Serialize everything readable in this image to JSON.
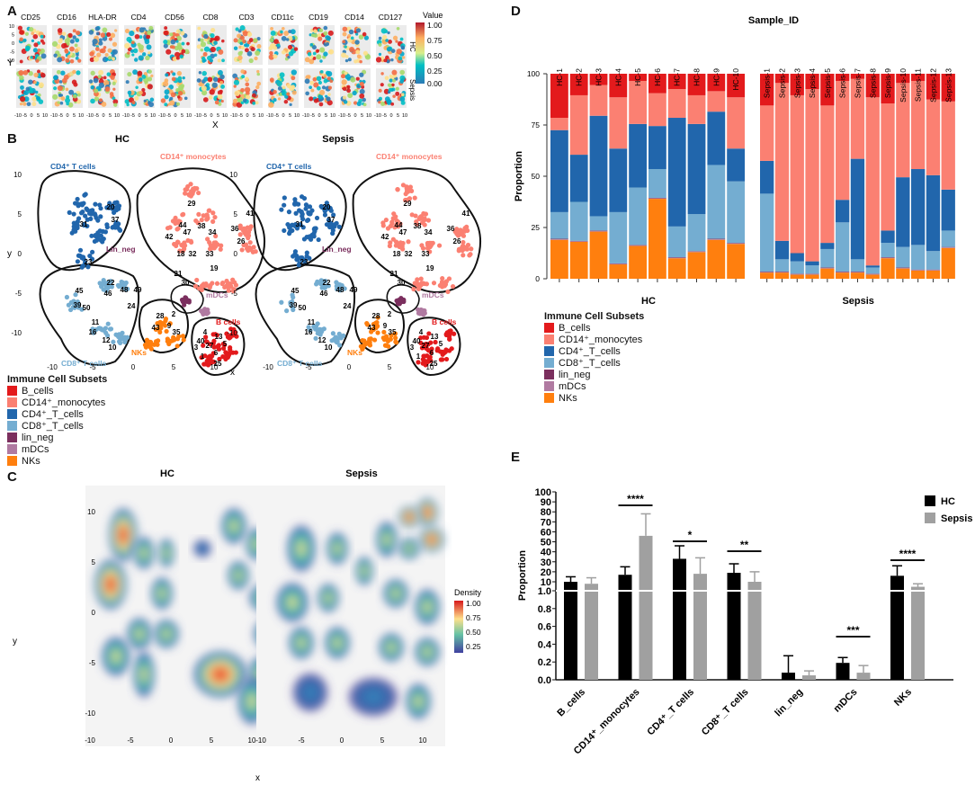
{
  "panel_labels": {
    "a": "A",
    "b": "B",
    "c": "C",
    "d": "D",
    "e": "E"
  },
  "panel_a": {
    "markers": [
      "CD25",
      "CD16",
      "HLA-DR",
      "CD4",
      "CD56",
      "CD8",
      "CD3",
      "CD11c",
      "CD19",
      "CD14",
      "CD127"
    ],
    "rows": [
      "HC",
      "Sepsis"
    ],
    "ylabel": "Y",
    "xlabel": "X",
    "xticks": [
      "-10",
      "-5",
      "0",
      "5",
      "10"
    ],
    "yticks": [
      "10",
      "5",
      "0",
      "-5",
      "-10"
    ],
    "colorbar_title": "Value",
    "colorbar_ticks": [
      "1.00",
      "0.75",
      "0.50",
      "0.25",
      "0.00"
    ]
  },
  "panel_b": {
    "titles": [
      "HC",
      "Sepsis"
    ],
    "xlabel": "x",
    "ylabel": "y",
    "xticks": [
      "-10",
      "-5",
      "0",
      "5",
      "10"
    ],
    "yticks": [
      "10",
      "5",
      "0",
      "-5",
      "-10"
    ],
    "population_labels": {
      "cd4": "CD4⁺ T cells",
      "cd14": "CD14⁺ monocytes",
      "lin": "Lin_neg",
      "mdc": "mDCs",
      "nk": "NKs",
      "bcell": "B cells",
      "cd8": "CD8⁺ T cells"
    },
    "legend_title": "Immune Cell Subsets",
    "legend_items": [
      {
        "label": "B_cells",
        "color": "#e31a1c"
      },
      {
        "label": "CD14⁺_monocytes",
        "color": "#fb8072"
      },
      {
        "label": "CD4⁺_T_cells",
        "color": "#2166ac"
      },
      {
        "label": "CD8⁺_T_cells",
        "color": "#74add1"
      },
      {
        "label": "lin_neg",
        "color": "#7b2f5e"
      },
      {
        "label": "mDCs",
        "color": "#b07aa1"
      },
      {
        "label": "NKs",
        "color": "#ff7f0e"
      }
    ],
    "cluster_numbers": [
      "29",
      "44",
      "38",
      "47",
      "34",
      "42",
      "36",
      "41",
      "26",
      "31",
      "20",
      "37",
      "23",
      "18",
      "32",
      "33",
      "19",
      "21",
      "22",
      "30",
      "45",
      "48",
      "46",
      "49",
      "39",
      "50",
      "24",
      "28",
      "2",
      "11",
      "16",
      "12",
      "10",
      "13",
      "6",
      "5",
      "40",
      "27",
      "25",
      "1",
      "3",
      "4",
      "9",
      "35",
      "43"
    ]
  },
  "panel_c": {
    "titles": [
      "HC",
      "Sepsis"
    ],
    "xlabel": "x",
    "ylabel": "y",
    "xticks": [
      "-10",
      "-5",
      "0",
      "5",
      "10"
    ],
    "yticks": [
      "10",
      "5",
      "0",
      "-5",
      "-10"
    ],
    "colorbar_title": "Density",
    "colorbar_ticks": [
      "1.00",
      "0.75",
      "0.50",
      "0.25"
    ]
  },
  "chart_data": [
    {
      "type": "bar",
      "id": "panel_d",
      "stacked": true,
      "title": "Sample_ID",
      "ylabel": "Proportion",
      "ylim": [
        0,
        100
      ],
      "yticks": [
        "100",
        "75",
        "50",
        "25",
        "0"
      ],
      "groups": [
        "HC",
        "Sepsis"
      ],
      "categories": [
        "HC-1",
        "HC-2",
        "HC-3",
        "HC-4",
        "HC-5",
        "HC-6",
        "HC-7",
        "HC-8",
        "HC-9",
        "HC-10",
        "Sepsis-1",
        "Sepsis-2",
        "Sepsis-3",
        "Sepsis-4",
        "Sepsis-5",
        "Sepsis-6",
        "Sepsis-7",
        "Sepsis-8",
        "Sepsis-9",
        "Sepsis-10",
        "Sepsis-11",
        "Sepsis-12",
        "Sepsis-13"
      ],
      "series": [
        {
          "name": "NKs",
          "color": "#ff7f0e",
          "values": [
            19,
            18,
            23,
            7,
            16,
            39,
            10,
            13,
            19,
            17,
            3,
            3,
            2,
            2,
            5,
            3,
            3,
            2,
            10,
            5,
            4,
            4,
            15
          ]
        },
        {
          "name": "mDCs",
          "color": "#b07aa1",
          "values": [
            0.3,
            0.3,
            0.3,
            0.3,
            0.3,
            0.3,
            0.3,
            0.3,
            0.3,
            0.3,
            0.3,
            0.3,
            0.3,
            0.3,
            0.3,
            0.3,
            0.3,
            0.3,
            0.3,
            0.3,
            0.3,
            0.3,
            0.3
          ]
        },
        {
          "name": "lin_neg",
          "color": "#7b2f5e",
          "values": [
            0.2,
            0.2,
            0.2,
            0.2,
            0.2,
            0.2,
            0.2,
            0.2,
            0.2,
            0.2,
            0.2,
            0.2,
            0.2,
            0.2,
            0.2,
            0.2,
            0.2,
            0.2,
            0.2,
            0.2,
            0.2,
            0.2,
            0.2
          ]
        },
        {
          "name": "CD8⁺_T_cells",
          "color": "#74add1",
          "values": [
            13,
            19,
            7,
            25,
            28,
            14,
            15,
            18,
            36,
            30,
            38,
            6,
            6,
            4,
            9,
            24,
            6,
            3,
            7,
            10,
            12,
            9,
            8
          ]
        },
        {
          "name": "CD4⁺_T_cells",
          "color": "#2166ac",
          "values": [
            40,
            23,
            49,
            31,
            31,
            21,
            53,
            44,
            26,
            16,
            16,
            9,
            4,
            2,
            3,
            11,
            49,
            1,
            6,
            34,
            37,
            37,
            20
          ]
        },
        {
          "name": "CD14⁺_monocytes",
          "color": "#fb8072",
          "values": [
            6,
            29,
            15,
            25,
            21,
            16,
            14,
            14,
            10,
            25,
            27,
            77,
            77,
            84,
            67,
            58,
            39,
            82,
            62,
            46,
            43,
            37,
            43
          ]
        },
        {
          "name": "B_cells",
          "color": "#e31a1c",
          "values": [
            21.5,
            10.5,
            5.5,
            11.5,
            3.5,
            9.5,
            7.5,
            10.5,
            8.5,
            11.5,
            15.5,
            4.5,
            10.5,
            7.5,
            15.5,
            3.5,
            2.5,
            11.5,
            14.5,
            4.5,
            3.5,
            12.5,
            13.5
          ]
        }
      ],
      "legend_title": "Immune Cell Subsets",
      "legend_items": [
        "B_cells",
        "CD14⁺_monocytes",
        "CD4⁺_T_cells",
        "CD8⁺_T_cells",
        "lin_neg",
        "mDCs",
        "NKs"
      ],
      "legend_colors": [
        "#e31a1c",
        "#fb8072",
        "#2166ac",
        "#74add1",
        "#7b2f5e",
        "#b07aa1",
        "#ff7f0e"
      ]
    },
    {
      "type": "bar",
      "id": "panel_e",
      "ylabel": "Proportion",
      "ylim_upper": [
        1,
        100
      ],
      "ylim_lower": [
        0,
        1
      ],
      "yticks_upper": [
        "100",
        "90",
        "80",
        "70",
        "60",
        "50",
        "40",
        "30",
        "20",
        "10",
        "1.0"
      ],
      "yticks_lower": [
        "1.0",
        "0.8",
        "0.6",
        "0.4",
        "0.2",
        "0.0"
      ],
      "categories": [
        "B_cells",
        "CD14⁺_monocytes",
        "CD4⁺_T cells",
        "CD8⁺_T cells",
        "lin_neg",
        "mDCs",
        "NKs"
      ],
      "series": [
        {
          "name": "HC",
          "color": "#000000",
          "values": [
            10,
            17,
            33,
            19,
            0.08,
            0.19,
            16
          ],
          "errors": [
            5,
            8,
            13,
            9,
            0.19,
            0.06,
            10
          ]
        },
        {
          "name": "Sepsis",
          "color": "#a0a0a0",
          "values": [
            8,
            56,
            18,
            10,
            0.05,
            0.08,
            5
          ],
          "errors": [
            6,
            22,
            16,
            10,
            0.05,
            0.08,
            3
          ]
        }
      ],
      "significance": [
        {
          "category": "CD14⁺_monocytes",
          "label": "****"
        },
        {
          "category": "CD4⁺_T cells",
          "label": "*"
        },
        {
          "category": "CD8⁺_T cells",
          "label": "**"
        },
        {
          "category": "mDCs",
          "label": "***"
        },
        {
          "category": "NKs",
          "label": "****"
        }
      ]
    }
  ]
}
